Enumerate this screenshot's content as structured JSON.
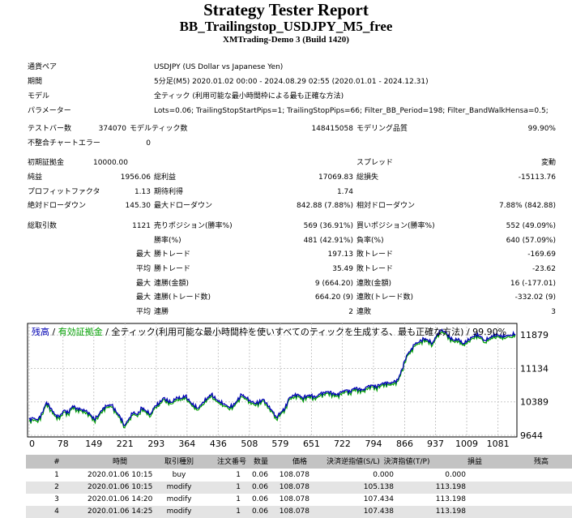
{
  "header": {
    "title": "Strategy Tester Report",
    "ea_name": "BB_Trailingstop_USDJPY_M5_free",
    "server": "XMTrading-Demo 3 (Build 1420)"
  },
  "settings": [
    {
      "label": "通貨ペア",
      "value": "USDJPY (US Dollar vs Japanese Yen)"
    },
    {
      "label": "期間",
      "value": "5分足(M5) 2020.01.02 00:00 - 2024.08.29 02:55 (2020.01.01 - 2024.12.31)"
    },
    {
      "label": "モデル",
      "value": "全ティック (利用可能な最小時間枠による最も正確な方法)"
    },
    {
      "label": "パラメーター",
      "value": "Lots=0.06; TrailingStopStartPips=1; TrailingStopPips=66; Filter_BB_Period=198; Filter_BandWalkHensa=0.5;"
    }
  ],
  "stats": {
    "bars_label": "テストバー数",
    "bars_value": "374070",
    "ticks_label": "モデルティック数",
    "ticks_value": "148415058",
    "quality_label": "モデリング品質",
    "quality_value": "99.90%",
    "mismatch_label": "不整合チャートエラー",
    "mismatch_value": "0",
    "deposit_label": "初期証拠金",
    "deposit_value": "10000.00",
    "spread_label": "スプレッド",
    "spread_value": "変動",
    "net_label": "純益",
    "net_value": "1956.06",
    "gross_profit_label": "総利益",
    "gross_profit_value": "17069.83",
    "gross_loss_label": "総損失",
    "gross_loss_value": "-15113.76",
    "pf_label": "プロフィットファクタ",
    "pf_value": "1.13",
    "expected_label": "期待利得",
    "expected_value": "1.74",
    "abs_dd_label": "絶対ドローダウン",
    "abs_dd_value": "145.30",
    "max_dd_label": "最大ドローダウン",
    "max_dd_value": "842.88 (7.88%)",
    "rel_dd_label": "相対ドローダウン",
    "rel_dd_value": "7.88% (842.88)",
    "trades_label": "総取引数",
    "trades_value": "1121",
    "short_label": "売りポジション(勝率%)",
    "short_value": "569 (36.91%)",
    "long_label": "買いポジション(勝率%)",
    "long_value": "552 (49.09%)",
    "win_label": "勝率(%)",
    "win_value": "481 (42.91%)",
    "loss_label": "負率(%)",
    "loss_value": "640 (57.09%)",
    "max_word": "最大",
    "avg_word": "平均",
    "max_win_label": "勝トレード",
    "max_win_value": "197.13",
    "max_loss_label": "敗トレード",
    "max_loss_value": "-169.69",
    "avg_win_label": "勝トレード",
    "avg_win_value": "35.49",
    "avg_loss_label": "敗トレード",
    "avg_loss_value": "-23.62",
    "cons_wins_label": "連勝(金額)",
    "cons_wins_value": "9 (664.20)",
    "cons_losses_label": "連敗(金額)",
    "cons_losses_value": "16 (-177.01)",
    "cons_profit_label": "連勝(トレード数)",
    "cons_profit_value": "664.20 (9)",
    "cons_loss_label": "連敗(トレード数)",
    "cons_loss_value": "-332.02 (9)",
    "avg_cons_wins_label": "連勝",
    "avg_cons_wins_value": "2",
    "avg_cons_losses_label": "連敗",
    "avg_cons_losses_value": "3"
  },
  "chart_caption": {
    "balance": "残高",
    "sep1": " / ",
    "equity": "有効証拠金",
    "rest": " / 全ティック(利用可能な最小時間枠を使いすべてのティックを生成する、最も正確な方法) / 99.90%"
  },
  "chart_data": {
    "type": "line",
    "colors": {
      "balance": "#0000b4",
      "equity": "#00a000"
    },
    "x_ticks": [
      "0",
      "78",
      "149",
      "221",
      "293",
      "364",
      "436",
      "508",
      "579",
      "651",
      "722",
      "794",
      "866",
      "937",
      "1009",
      "1081"
    ],
    "y_ticks": [
      "11879",
      "11134",
      "10389",
      "9644"
    ],
    "ylim": [
      9644,
      12100
    ],
    "xlim": [
      0,
      1121
    ],
    "series": [
      {
        "x": [
          0,
          10,
          20,
          30,
          40,
          50,
          60,
          70,
          80,
          90,
          100,
          110,
          120,
          130,
          140,
          150,
          160,
          170,
          180,
          190,
          200,
          210,
          220,
          230,
          240,
          250,
          260,
          270,
          280,
          290,
          300,
          310,
          320,
          330,
          340,
          350,
          360,
          370,
          380,
          390,
          400,
          410,
          420,
          430,
          440,
          450,
          460,
          470,
          480,
          490,
          500,
          510,
          520,
          530,
          540,
          550,
          560,
          570,
          580,
          590,
          600,
          610,
          620,
          630,
          640,
          650,
          660,
          670,
          680,
          690,
          700,
          710,
          720,
          730,
          740,
          750,
          760,
          770,
          780,
          790,
          800,
          810,
          820,
          830,
          840,
          850,
          860,
          870,
          880,
          890,
          900,
          910,
          920,
          930,
          940,
          950,
          960,
          970,
          980,
          990,
          1000,
          1010,
          1020,
          1030,
          1040,
          1050,
          1060,
          1070,
          1080,
          1090,
          1100,
          1110,
          1121
        ],
        "y": [
          10000,
          10020,
          9980,
          10150,
          10380,
          10250,
          10100,
          10050,
          10200,
          10150,
          10300,
          10250,
          10220,
          10180,
          10120,
          10000,
          10100,
          10250,
          10300,
          10320,
          10180,
          10050,
          9860,
          10020,
          10150,
          10100,
          10260,
          10180,
          10120,
          10300,
          10350,
          10480,
          10400,
          10380,
          10500,
          10460,
          10520,
          10400,
          10300,
          10250,
          10380,
          10460,
          10560,
          10450,
          10380,
          10350,
          10280,
          10300,
          10420,
          10550,
          10480,
          10420,
          10360,
          10380,
          10450,
          10300,
          10200,
          10050,
          10150,
          10250,
          10480,
          10520,
          10560,
          10480,
          10520,
          10540,
          10480,
          10560,
          10600,
          10620,
          10580,
          10550,
          10600,
          10650,
          10620,
          10700,
          10680,
          10650,
          10720,
          10760,
          10730,
          10780,
          10820,
          10800,
          10820,
          10880,
          11120,
          11420,
          11550,
          11680,
          11720,
          11800,
          11760,
          11700,
          11880,
          11980,
          11940,
          11820,
          11760,
          11800,
          11680,
          11740,
          11820,
          11880,
          11860,
          11760,
          11800,
          11860,
          11880,
          11840,
          11870,
          11880,
          11900
        ]
      }
    ]
  },
  "orders": {
    "columns": [
      "#",
      "時間",
      "取引種別",
      "注文番号",
      "数量",
      "価格",
      "決済逆指値(S/L)",
      "決済指値(T/P)",
      "損益",
      "残高"
    ],
    "rows": [
      [
        "1",
        "2020.01.06 10:15",
        "buy",
        "1",
        "0.06",
        "108.078",
        "0.000",
        "0.000",
        "",
        ""
      ],
      [
        "2",
        "2020.01.06 10:15",
        "modify",
        "1",
        "0.06",
        "108.078",
        "105.138",
        "113.198",
        "",
        ""
      ],
      [
        "3",
        "2020.01.06 14:20",
        "modify",
        "1",
        "0.06",
        "108.078",
        "107.434",
        "113.198",
        "",
        ""
      ],
      [
        "4",
        "2020.01.06 14:25",
        "modify",
        "1",
        "0.06",
        "108.078",
        "107.438",
        "113.198",
        "",
        ""
      ]
    ]
  }
}
